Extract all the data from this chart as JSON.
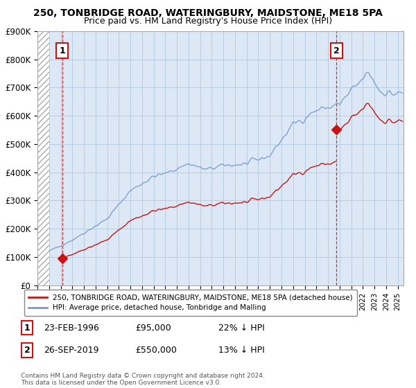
{
  "title": "250, TONBRIDGE ROAD, WATERINGBURY, MAIDSTONE, ME18 5PA",
  "subtitle": "Price paid vs. HM Land Registry's House Price Index (HPI)",
  "ylabel_values": [
    "£0",
    "£100K",
    "£200K",
    "£300K",
    "£400K",
    "£500K",
    "£600K",
    "£700K",
    "£800K",
    "£900K"
  ],
  "ylim": [
    0,
    900000
  ],
  "yticks": [
    0,
    100000,
    200000,
    300000,
    400000,
    500000,
    600000,
    700000,
    800000,
    900000
  ],
  "xlim_start": 1994.0,
  "xlim_end": 2025.5,
  "sale1_x": 1996.13,
  "sale1_y": 95000,
  "sale2_x": 2019.73,
  "sale2_y": 550000,
  "sale1_label": "1",
  "sale2_label": "2",
  "hpi_color": "#7799cc",
  "price_color": "#cc1111",
  "annotation1_date": "23-FEB-1996",
  "annotation1_price": "£95,000",
  "annotation1_hpi": "22% ↓ HPI",
  "annotation2_date": "26-SEP-2019",
  "annotation2_price": "£550,000",
  "annotation2_hpi": "13% ↓ HPI",
  "legend_line1": "250, TONBRIDGE ROAD, WATERINGBURY, MAIDSTONE, ME18 5PA (detached house)",
  "legend_line2": "HPI: Average price, detached house, Tonbridge and Malling",
  "footnote": "Contains HM Land Registry data © Crown copyright and database right 2024.\nThis data is licensed under the Open Government Licence v3.0.",
  "bg_plot_color": "#dce8f5",
  "grid_color": "#b8cce0"
}
